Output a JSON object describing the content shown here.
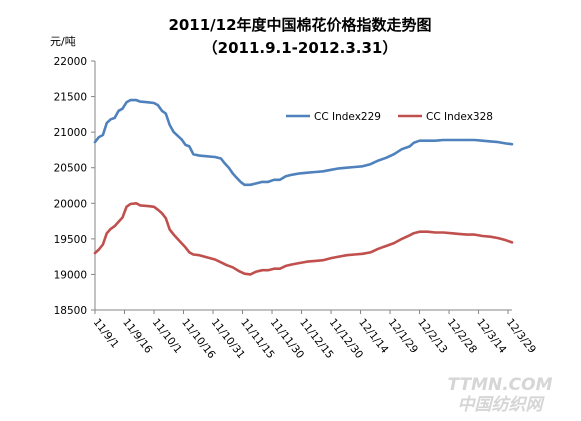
{
  "chart_data": {
    "type": "line",
    "title": "2011/12年度中国棉花价格指数走势图",
    "subtitle": "（2011.9.1-2012.3.31）",
    "ylabel": "元/吨",
    "xlabel": "",
    "ylim": [
      18500,
      22000
    ],
    "ystep": 500,
    "yticks": [
      18500,
      19000,
      19500,
      20000,
      20500,
      21000,
      21500,
      22000
    ],
    "x_start": "2011-09-01",
    "x_end": "2012-03-31",
    "x_ticks": [
      {
        "date": "2011-09-01",
        "label": "11/9/1"
      },
      {
        "date": "2011-09-16",
        "label": "11/9/16"
      },
      {
        "date": "2011-10-01",
        "label": "11/10/1"
      },
      {
        "date": "2011-10-16",
        "label": "11/10/16"
      },
      {
        "date": "2011-10-31",
        "label": "11/10/31"
      },
      {
        "date": "2011-11-15",
        "label": "11/11/15"
      },
      {
        "date": "2011-11-30",
        "label": "11/11/30"
      },
      {
        "date": "2011-12-15",
        "label": "11/12/15"
      },
      {
        "date": "2011-12-30",
        "label": "11/12/30"
      },
      {
        "date": "2012-01-14",
        "label": "12/1/14"
      },
      {
        "date": "2012-01-29",
        "label": "12/1/29"
      },
      {
        "date": "2012-02-13",
        "label": "12/2/13"
      },
      {
        "date": "2012-02-28",
        "label": "12/2/28"
      },
      {
        "date": "2012-03-14",
        "label": "12/3/14"
      },
      {
        "date": "2012-03-29",
        "label": "12/3/29"
      }
    ],
    "grid": false,
    "legend_position": "top-right",
    "series": [
      {
        "name": "CC Index229",
        "color": "#4f81bd",
        "points": [
          [
            "2011-09-01",
            20860
          ],
          [
            "2011-09-03",
            20930
          ],
          [
            "2011-09-05",
            20960
          ],
          [
            "2011-09-07",
            21130
          ],
          [
            "2011-09-09",
            21180
          ],
          [
            "2011-09-11",
            21200
          ],
          [
            "2011-09-13",
            21300
          ],
          [
            "2011-09-15",
            21330
          ],
          [
            "2011-09-17",
            21420
          ],
          [
            "2011-09-19",
            21450
          ],
          [
            "2011-09-22",
            21450
          ],
          [
            "2011-09-24",
            21430
          ],
          [
            "2011-09-28",
            21420
          ],
          [
            "2011-10-01",
            21410
          ],
          [
            "2011-10-03",
            21380
          ],
          [
            "2011-10-05",
            21300
          ],
          [
            "2011-10-07",
            21260
          ],
          [
            "2011-10-09",
            21100
          ],
          [
            "2011-10-11",
            21000
          ],
          [
            "2011-10-13",
            20950
          ],
          [
            "2011-10-15",
            20900
          ],
          [
            "2011-10-17",
            20820
          ],
          [
            "2011-10-19",
            20800
          ],
          [
            "2011-10-21",
            20690
          ],
          [
            "2011-10-24",
            20670
          ],
          [
            "2011-10-28",
            20660
          ],
          [
            "2011-11-01",
            20650
          ],
          [
            "2011-11-04",
            20630
          ],
          [
            "2011-11-06",
            20560
          ],
          [
            "2011-11-08",
            20500
          ],
          [
            "2011-11-10",
            20420
          ],
          [
            "2011-11-12",
            20360
          ],
          [
            "2011-11-14",
            20300
          ],
          [
            "2011-11-16",
            20260
          ],
          [
            "2011-11-19",
            20260
          ],
          [
            "2011-11-22",
            20280
          ],
          [
            "2011-11-25",
            20300
          ],
          [
            "2011-11-28",
            20300
          ],
          [
            "2011-12-01",
            20330
          ],
          [
            "2011-12-04",
            20330
          ],
          [
            "2011-12-07",
            20380
          ],
          [
            "2011-12-10",
            20400
          ],
          [
            "2011-12-14",
            20420
          ],
          [
            "2011-12-18",
            20430
          ],
          [
            "2011-12-22",
            20440
          ],
          [
            "2011-12-26",
            20450
          ],
          [
            "2011-12-30",
            20470
          ],
          [
            "2012-01-03",
            20490
          ],
          [
            "2012-01-07",
            20500
          ],
          [
            "2012-01-11",
            20510
          ],
          [
            "2012-01-15",
            20520
          ],
          [
            "2012-01-19",
            20550
          ],
          [
            "2012-01-23",
            20600
          ],
          [
            "2012-01-27",
            20640
          ],
          [
            "2012-01-31",
            20690
          ],
          [
            "2012-02-04",
            20760
          ],
          [
            "2012-02-08",
            20800
          ],
          [
            "2012-02-10",
            20850
          ],
          [
            "2012-02-13",
            20880
          ],
          [
            "2012-02-17",
            20880
          ],
          [
            "2012-02-21",
            20880
          ],
          [
            "2012-02-25",
            20890
          ],
          [
            "2012-02-29",
            20890
          ],
          [
            "2012-03-04",
            20890
          ],
          [
            "2012-03-08",
            20890
          ],
          [
            "2012-03-12",
            20890
          ],
          [
            "2012-03-16",
            20880
          ],
          [
            "2012-03-20",
            20870
          ],
          [
            "2012-03-24",
            20860
          ],
          [
            "2012-03-28",
            20840
          ],
          [
            "2012-03-31",
            20830
          ]
        ]
      },
      {
        "name": "CC Index328",
        "color": "#c0504d",
        "points": [
          [
            "2011-09-01",
            19300
          ],
          [
            "2011-09-03",
            19350
          ],
          [
            "2011-09-05",
            19420
          ],
          [
            "2011-09-07",
            19580
          ],
          [
            "2011-09-09",
            19640
          ],
          [
            "2011-09-11",
            19680
          ],
          [
            "2011-09-13",
            19740
          ],
          [
            "2011-09-15",
            19800
          ],
          [
            "2011-09-17",
            19950
          ],
          [
            "2011-09-19",
            19990
          ],
          [
            "2011-09-22",
            20000
          ],
          [
            "2011-09-24",
            19970
          ],
          [
            "2011-09-28",
            19960
          ],
          [
            "2011-10-01",
            19950
          ],
          [
            "2011-10-03",
            19910
          ],
          [
            "2011-10-05",
            19860
          ],
          [
            "2011-10-07",
            19790
          ],
          [
            "2011-10-09",
            19630
          ],
          [
            "2011-10-11",
            19560
          ],
          [
            "2011-10-13",
            19500
          ],
          [
            "2011-10-15",
            19440
          ],
          [
            "2011-10-17",
            19380
          ],
          [
            "2011-10-19",
            19310
          ],
          [
            "2011-10-21",
            19280
          ],
          [
            "2011-10-24",
            19270
          ],
          [
            "2011-10-28",
            19240
          ],
          [
            "2011-11-01",
            19210
          ],
          [
            "2011-11-04",
            19170
          ],
          [
            "2011-11-07",
            19130
          ],
          [
            "2011-11-10",
            19100
          ],
          [
            "2011-11-13",
            19050
          ],
          [
            "2011-11-16",
            19010
          ],
          [
            "2011-11-19",
            19000
          ],
          [
            "2011-11-22",
            19040
          ],
          [
            "2011-11-25",
            19060
          ],
          [
            "2011-11-28",
            19060
          ],
          [
            "2011-12-01",
            19080
          ],
          [
            "2011-12-04",
            19080
          ],
          [
            "2011-12-07",
            19120
          ],
          [
            "2011-12-10",
            19140
          ],
          [
            "2011-12-14",
            19160
          ],
          [
            "2011-12-18",
            19180
          ],
          [
            "2011-12-22",
            19190
          ],
          [
            "2011-12-26",
            19200
          ],
          [
            "2011-12-30",
            19230
          ],
          [
            "2012-01-03",
            19250
          ],
          [
            "2012-01-07",
            19270
          ],
          [
            "2012-01-11",
            19280
          ],
          [
            "2012-01-15",
            19290
          ],
          [
            "2012-01-19",
            19310
          ],
          [
            "2012-01-23",
            19360
          ],
          [
            "2012-01-27",
            19400
          ],
          [
            "2012-01-31",
            19440
          ],
          [
            "2012-02-04",
            19500
          ],
          [
            "2012-02-08",
            19550
          ],
          [
            "2012-02-10",
            19580
          ],
          [
            "2012-02-13",
            19600
          ],
          [
            "2012-02-17",
            19600
          ],
          [
            "2012-02-21",
            19590
          ],
          [
            "2012-02-25",
            19590
          ],
          [
            "2012-02-29",
            19580
          ],
          [
            "2012-03-04",
            19570
          ],
          [
            "2012-03-08",
            19560
          ],
          [
            "2012-03-12",
            19560
          ],
          [
            "2012-03-16",
            19540
          ],
          [
            "2012-03-20",
            19530
          ],
          [
            "2012-03-24",
            19510
          ],
          [
            "2012-03-28",
            19480
          ],
          [
            "2012-03-31",
            19450
          ]
        ]
      }
    ]
  },
  "watermark": {
    "line1": "TTMN.COM",
    "line2": "中国纺织网",
    "color": "#d6d6d6"
  }
}
